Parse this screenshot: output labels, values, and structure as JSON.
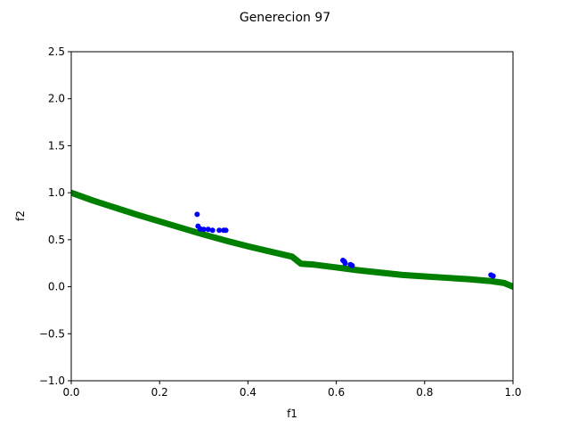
{
  "chart_data": {
    "type": "scatter",
    "title": "Generecion 97",
    "xlabel": "f1",
    "ylabel": "f2",
    "xlim": [
      0.0,
      1.0
    ],
    "ylim": [
      -1.0,
      2.5
    ],
    "xticks": [
      "0.0",
      "0.2",
      "0.4",
      "0.6",
      "0.8",
      "1.0"
    ],
    "xtick_values": [
      0.0,
      0.2,
      0.4,
      0.6,
      0.8,
      1.0
    ],
    "yticks": [
      "−1.0",
      "−0.5",
      "0.0",
      "0.5",
      "1.0",
      "1.5",
      "2.0",
      "2.5"
    ],
    "ytick_values": [
      -1.0,
      -0.5,
      0.0,
      0.5,
      1.0,
      1.5,
      2.0,
      2.5
    ],
    "grid": false,
    "legend": "none",
    "colors": {
      "front": "#008000",
      "population": "#0000ff",
      "axes": "#000000"
    },
    "series": [
      {
        "kind": "pareto-front",
        "x": [
          0.0,
          0.05,
          0.1,
          0.15,
          0.2,
          0.25,
          0.3,
          0.35,
          0.4,
          0.45,
          0.5,
          0.52,
          0.55,
          0.6,
          0.65,
          0.7,
          0.75,
          0.8,
          0.85,
          0.9,
          0.95,
          0.98,
          1.0
        ],
        "y": [
          1.0,
          0.915,
          0.84,
          0.765,
          0.695,
          0.625,
          0.555,
          0.49,
          0.43,
          0.375,
          0.32,
          0.245,
          0.235,
          0.205,
          0.175,
          0.15,
          0.125,
          0.11,
          0.095,
          0.08,
          0.06,
          0.04,
          0.0
        ]
      },
      {
        "kind": "population",
        "x": [
          0.285,
          0.287,
          0.292,
          0.3,
          0.31,
          0.32,
          0.335,
          0.345,
          0.35,
          0.615,
          0.618,
          0.62,
          0.632,
          0.636,
          0.95,
          0.955
        ],
        "y": [
          0.77,
          0.645,
          0.615,
          0.61,
          0.61,
          0.6,
          0.6,
          0.6,
          0.6,
          0.28,
          0.27,
          0.25,
          0.235,
          0.225,
          0.125,
          0.115
        ]
      }
    ]
  }
}
